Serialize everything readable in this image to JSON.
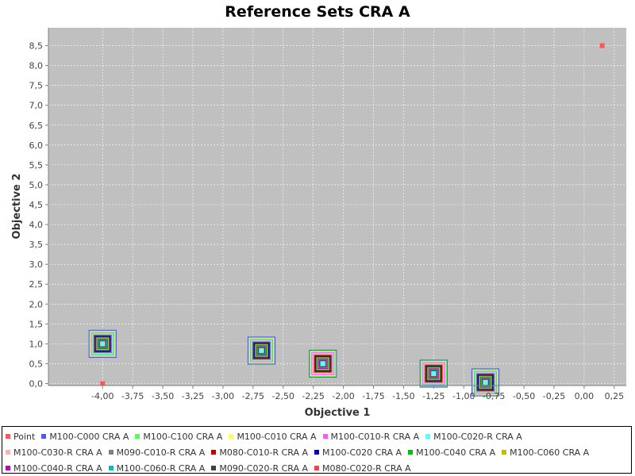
{
  "chart_data": {
    "type": "scatter",
    "title": "Reference Sets CRA A",
    "xlabel": "Objective 1",
    "ylabel": "Objective 2",
    "xlim": [
      -4.45,
      0.35
    ],
    "ylim": [
      -0.05,
      8.95
    ],
    "x_ticks": [
      {
        "v": -4.0,
        "label": "-4,00"
      },
      {
        "v": -3.75,
        "label": "-3,75"
      },
      {
        "v": -3.5,
        "label": "-3,50"
      },
      {
        "v": -3.25,
        "label": "-3,25"
      },
      {
        "v": -3.0,
        "label": "-3,00"
      },
      {
        "v": -2.75,
        "label": "-2,75"
      },
      {
        "v": -2.5,
        "label": "-2,50"
      },
      {
        "v": -2.25,
        "label": "-2,25"
      },
      {
        "v": -2.0,
        "label": "-2,00"
      },
      {
        "v": -1.75,
        "label": "-1,75"
      },
      {
        "v": -1.5,
        "label": "-1,50"
      },
      {
        "v": -1.25,
        "label": "-1,25"
      },
      {
        "v": -1.0,
        "label": "-1,00"
      },
      {
        "v": -0.75,
        "label": "-0,75"
      },
      {
        "v": -0.5,
        "label": "-0,50"
      },
      {
        "v": -0.25,
        "label": "-0,25"
      },
      {
        "v": 0.0,
        "label": "0,00"
      },
      {
        "v": 0.25,
        "label": "0,25"
      }
    ],
    "y_ticks": [
      {
        "v": 0.0,
        "label": "0,0"
      },
      {
        "v": 0.5,
        "label": "0,5"
      },
      {
        "v": 1.0,
        "label": "1,0"
      },
      {
        "v": 1.5,
        "label": "1,5"
      },
      {
        "v": 2.0,
        "label": "2,0"
      },
      {
        "v": 2.5,
        "label": "2,5"
      },
      {
        "v": 3.0,
        "label": "3,0"
      },
      {
        "v": 3.5,
        "label": "3,5"
      },
      {
        "v": 4.0,
        "label": "4,0"
      },
      {
        "v": 4.5,
        "label": "4,5"
      },
      {
        "v": 5.0,
        "label": "5,0"
      },
      {
        "v": 5.5,
        "label": "5,5"
      },
      {
        "v": 6.0,
        "label": "6,0"
      },
      {
        "v": 6.5,
        "label": "6,5"
      },
      {
        "v": 7.0,
        "label": "7,0"
      },
      {
        "v": 7.5,
        "label": "7,5"
      },
      {
        "v": 8.0,
        "label": "8,0"
      },
      {
        "v": 8.5,
        "label": "8,5"
      }
    ],
    "grid": true,
    "legend_position": "bottom",
    "plot_background": "#c0c0c0",
    "point_marker": "square",
    "series": [
      {
        "name": "Point",
        "color": "#ff5555",
        "points": [
          [
            -4.0,
            0.0
          ],
          [
            0.15,
            8.5
          ]
        ]
      },
      {
        "name": "M100-C000 CRA A",
        "color": "#5555ff",
        "points": [
          [
            -4.0,
            1.0
          ],
          [
            -2.68,
            0.83
          ],
          [
            -2.17,
            0.5
          ],
          [
            -1.25,
            0.25
          ],
          [
            -0.82,
            0.03
          ]
        ]
      },
      {
        "name": "M100-C100 CRA A",
        "color": "#55ff55",
        "points": [
          [
            -4.0,
            1.0
          ],
          [
            -2.68,
            0.83
          ],
          [
            -2.17,
            0.5
          ],
          [
            -1.25,
            0.25
          ],
          [
            -0.82,
            0.03
          ]
        ]
      },
      {
        "name": "M100-C010 CRA A",
        "color": "#ffff55",
        "points": [
          [
            -4.0,
            1.0
          ],
          [
            -2.68,
            0.83
          ],
          [
            -2.17,
            0.5
          ],
          [
            -1.25,
            0.25
          ],
          [
            -0.82,
            0.03
          ]
        ]
      },
      {
        "name": "M100-C010-R CRA A",
        "color": "#ff55ff",
        "points": [
          [
            -4.0,
            1.0
          ],
          [
            -2.68,
            0.83
          ],
          [
            -2.17,
            0.5
          ],
          [
            -1.25,
            0.25
          ],
          [
            -0.82,
            0.03
          ]
        ]
      },
      {
        "name": "M100-C020-R CRA A",
        "color": "#55ffff",
        "points": [
          [
            -4.0,
            1.0
          ],
          [
            -2.68,
            0.83
          ],
          [
            -2.17,
            0.5
          ],
          [
            -1.25,
            0.25
          ],
          [
            -0.82,
            0.03
          ]
        ]
      },
      {
        "name": "M100-C030-R CRA A",
        "color": "#ffafaf",
        "points": [
          [
            -4.0,
            1.0
          ],
          [
            -2.68,
            0.83
          ],
          [
            -2.17,
            0.5
          ],
          [
            -1.25,
            0.25
          ],
          [
            -0.82,
            0.03
          ]
        ]
      },
      {
        "name": "M090-C010-R CRA A",
        "color": "#808080",
        "points": [
          [
            -4.0,
            1.0
          ],
          [
            -2.68,
            0.83
          ],
          [
            -2.17,
            0.5
          ],
          [
            -1.25,
            0.25
          ],
          [
            -0.82,
            0.03
          ]
        ]
      },
      {
        "name": "M080-C010-R CRA A",
        "color": "#c00000",
        "points": [
          [
            -4.0,
            1.0
          ],
          [
            -2.68,
            0.83
          ],
          [
            -2.17,
            0.5
          ],
          [
            -1.25,
            0.25
          ],
          [
            -0.82,
            0.03
          ]
        ]
      },
      {
        "name": "M100-C020 CRA A",
        "color": "#0000c0",
        "points": [
          [
            -4.0,
            1.0
          ],
          [
            -2.68,
            0.83
          ],
          [
            -2.17,
            0.5
          ],
          [
            -1.25,
            0.25
          ],
          [
            -0.82,
            0.03
          ]
        ]
      },
      {
        "name": "M100-C040 CRA A",
        "color": "#00c000",
        "points": [
          [
            -4.0,
            1.0
          ],
          [
            -2.68,
            0.83
          ],
          [
            -2.17,
            0.5
          ],
          [
            -1.25,
            0.25
          ],
          [
            -0.82,
            0.03
          ]
        ]
      },
      {
        "name": "M100-C060 CRA A",
        "color": "#c0c000",
        "points": [
          [
            -4.0,
            1.0
          ],
          [
            -2.68,
            0.83
          ],
          [
            -2.17,
            0.5
          ],
          [
            -1.25,
            0.25
          ],
          [
            -0.82,
            0.03
          ]
        ]
      },
      {
        "name": "M100-C040-R CRA A",
        "color": "#c000c0",
        "points": [
          [
            -4.0,
            1.0
          ],
          [
            -2.68,
            0.83
          ],
          [
            -2.17,
            0.5
          ],
          [
            -1.25,
            0.25
          ],
          [
            -0.82,
            0.03
          ]
        ]
      },
      {
        "name": "M100-C060-R CRA A",
        "color": "#00c0c0",
        "points": [
          [
            -4.0,
            1.0
          ],
          [
            -2.68,
            0.83
          ],
          [
            -2.17,
            0.5
          ],
          [
            -1.25,
            0.25
          ],
          [
            -0.82,
            0.03
          ]
        ]
      },
      {
        "name": "M090-C020-R CRA A",
        "color": "#404040",
        "points": [
          [
            -4.0,
            1.0
          ],
          [
            -2.68,
            0.83
          ],
          [
            -2.17,
            0.5
          ],
          [
            -1.25,
            0.25
          ],
          [
            -0.82,
            0.03
          ]
        ]
      },
      {
        "name": "M080-C020-R CRA A",
        "color": "#ff4040",
        "points": [
          [
            -4.0,
            1.0
          ],
          [
            -2.68,
            0.83
          ],
          [
            -2.17,
            0.5
          ],
          [
            -1.25,
            0.25
          ],
          [
            -0.82,
            0.03
          ]
        ]
      }
    ]
  }
}
